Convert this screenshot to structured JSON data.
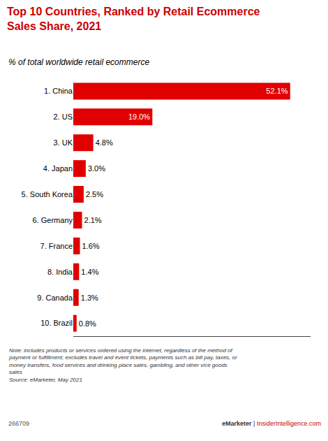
{
  "chart_data": {
    "type": "bar",
    "orientation": "horizontal",
    "title": "Top 10 Countries, Ranked by Retail Ecommerce\nSales Share, 2021",
    "subtitle": "% of total worldwide retail ecommerce",
    "categories": [
      "1. China",
      "2. US",
      "3. UK",
      "4. Japan",
      "5. South Korea",
      "6. Germany",
      "7. France",
      "8. India",
      "9. Canada",
      "10. Brazil"
    ],
    "values": [
      52.1,
      19.0,
      4.8,
      3.0,
      2.5,
      2.1,
      1.6,
      1.4,
      1.3,
      0.8
    ],
    "value_labels": [
      "52.1%",
      "19.0%",
      "4.8%",
      "3.0%",
      "2.5%",
      "2.1%",
      "1.6%",
      "1.4%",
      "1.3%",
      "0.8%"
    ],
    "data_labels": true,
    "color": "#e00000",
    "xlim": [
      0,
      57
    ],
    "grid": false,
    "tick_labels": "y",
    "annotations": [
      "Note: includes products or services ordered using the internet, regardless of the method of\npayment or fulfillment; excludes travel and event tickets, payments such as bill pay, taxes, or\nmoney transfers, food services and drinking place sales, gambling, and other vice goods\nsales\nSource: eMarketer, May 2021",
      "266709",
      "eMarketer",
      " | ",
      "InsiderIntelligence.com"
    ]
  }
}
